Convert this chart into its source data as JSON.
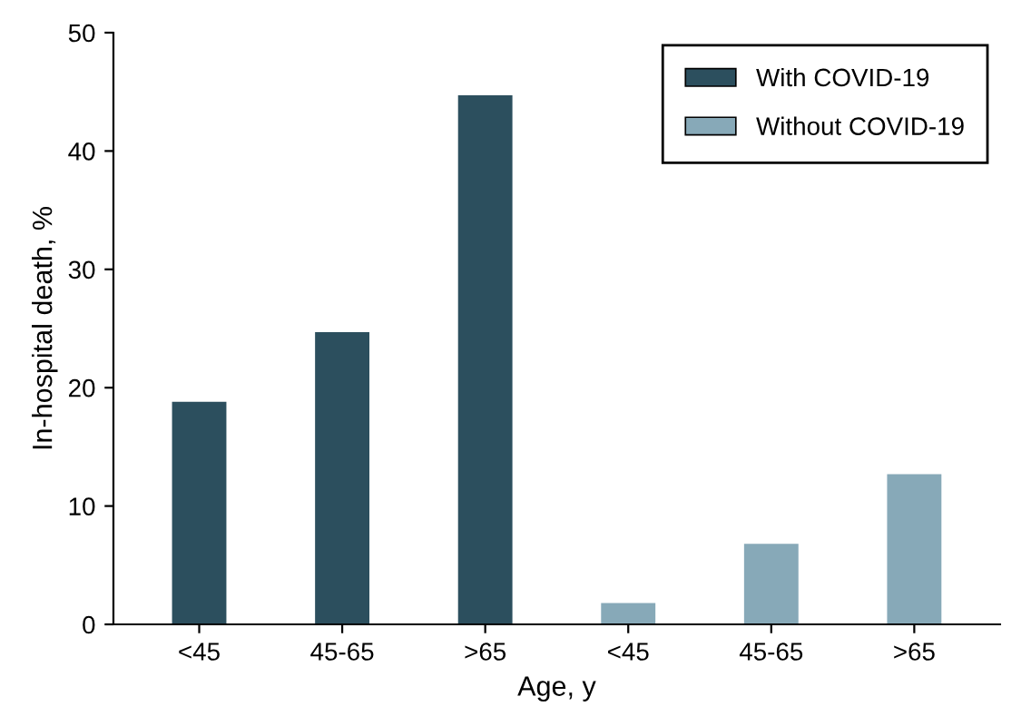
{
  "chart_data": {
    "type": "bar",
    "xlabel": "Age, y",
    "ylabel": "In-hospital death, %",
    "categories": [
      "<45",
      "45-65",
      ">65",
      "<45",
      "45-65",
      ">65"
    ],
    "series": [
      {
        "name": "With COVID-19",
        "color": "#2c4f5e",
        "values": [
          18.8,
          24.7,
          44.7,
          null,
          null,
          null
        ]
      },
      {
        "name": "Without COVID-19",
        "color": "#87a9b8",
        "values": [
          null,
          null,
          null,
          1.8,
          6.8,
          12.7
        ]
      }
    ],
    "ylim": [
      0,
      50
    ],
    "yticks": [
      0,
      10,
      20,
      30,
      40,
      50
    ],
    "grid": false,
    "legend": "top right"
  }
}
